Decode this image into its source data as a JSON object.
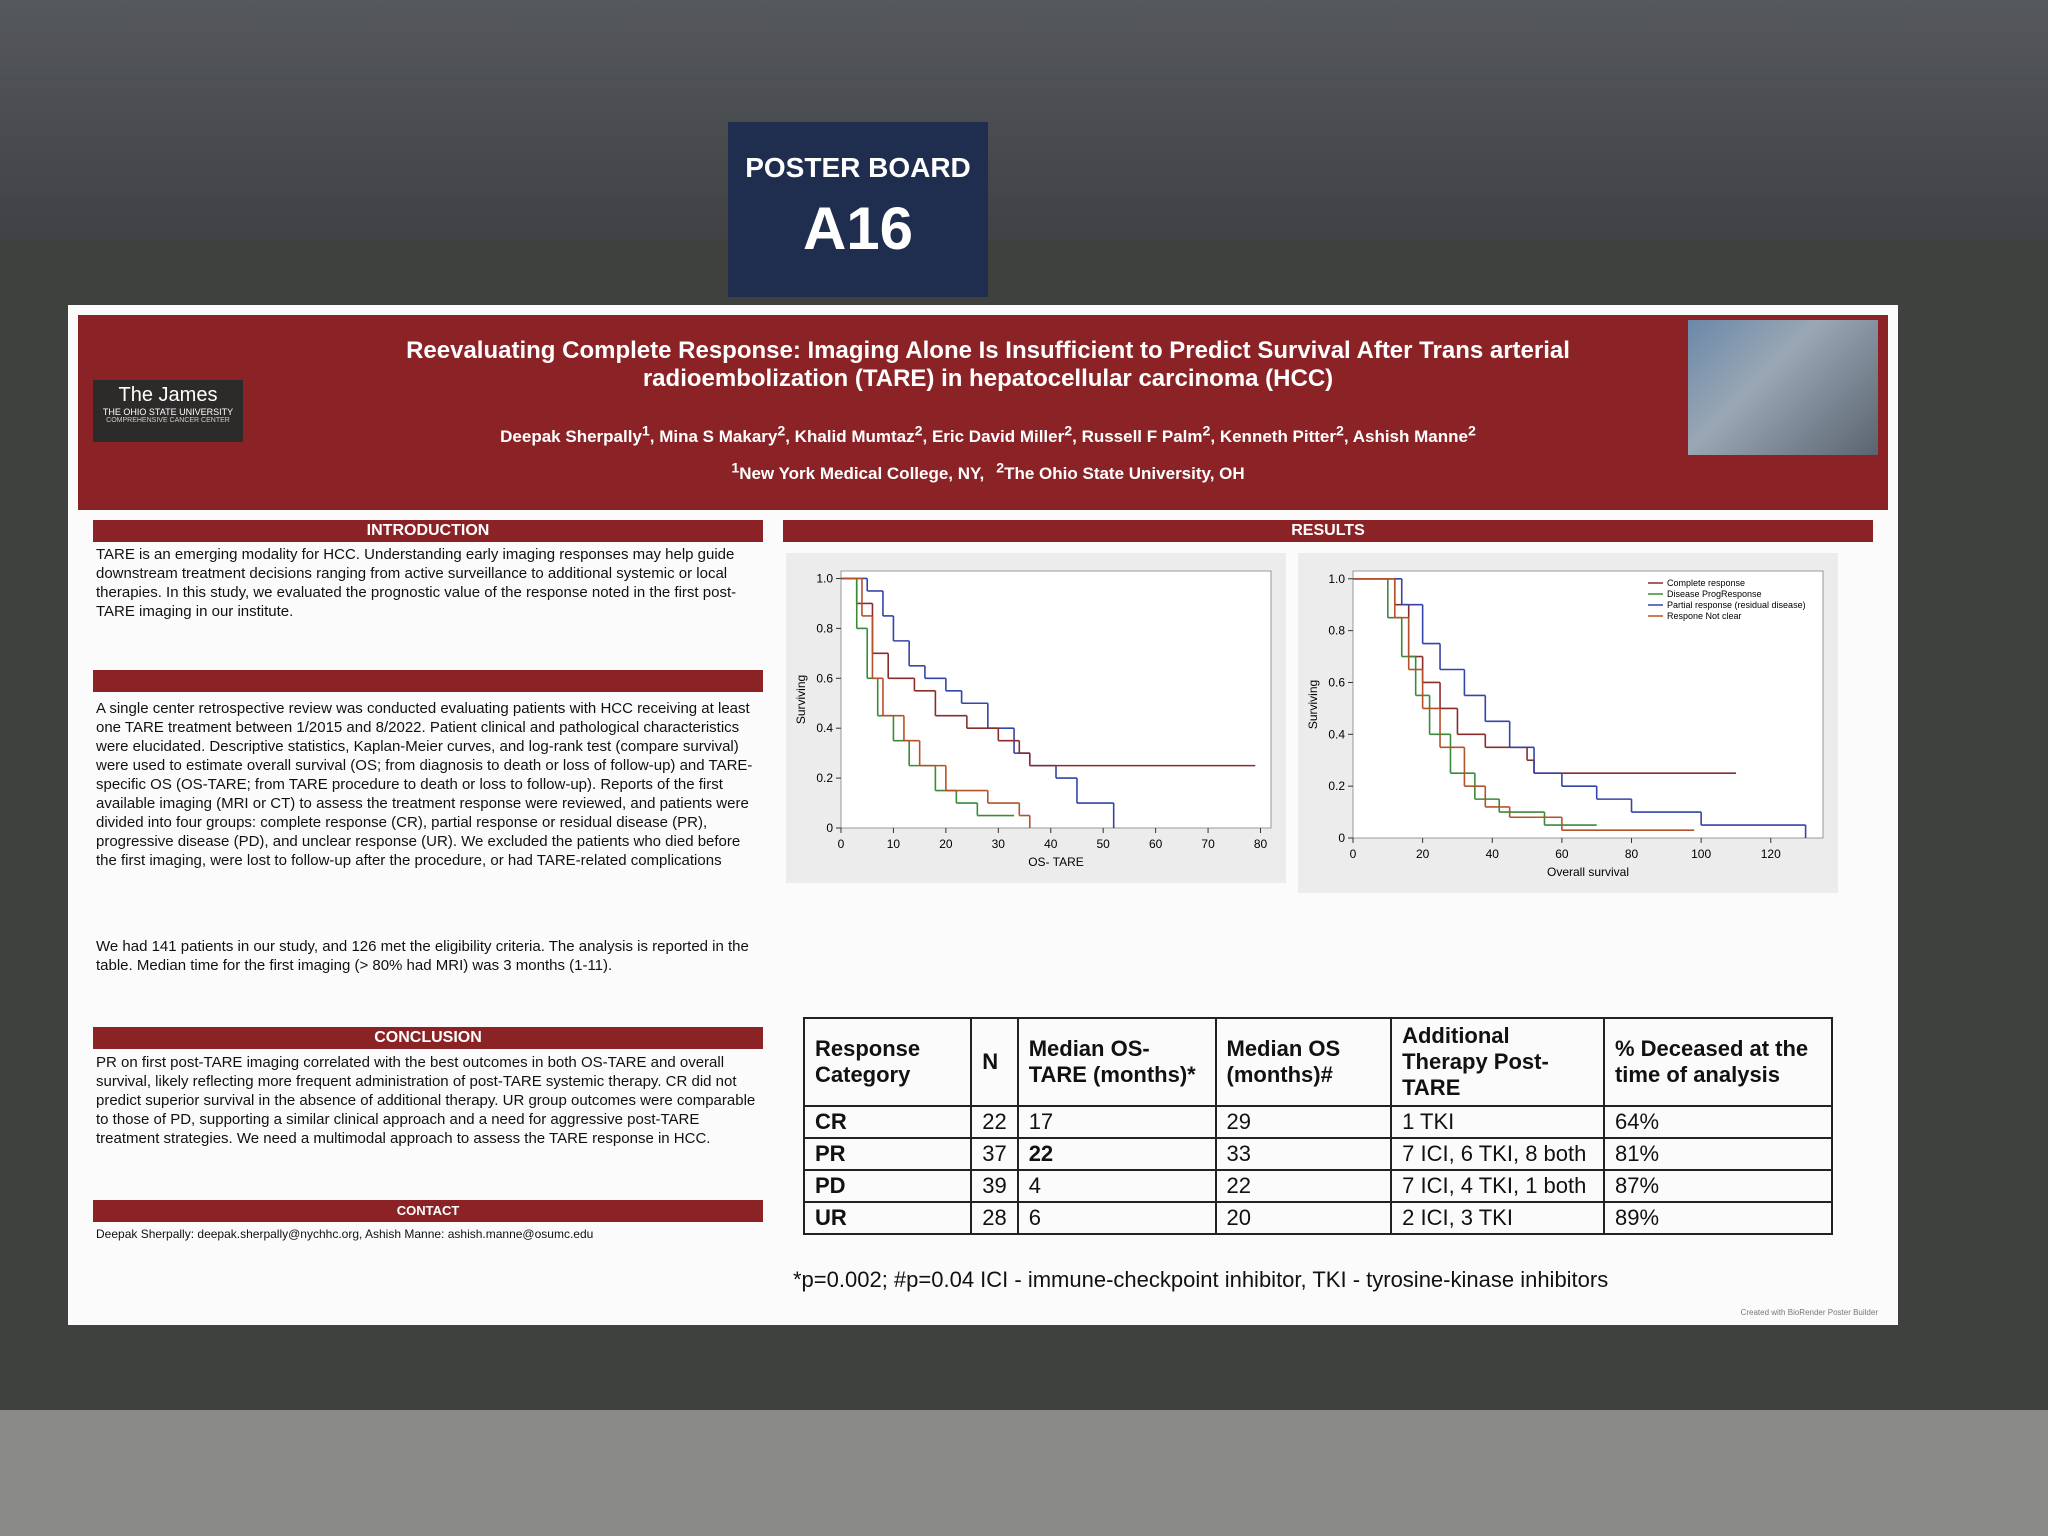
{
  "board": {
    "label": "POSTER BOARD",
    "number": "A16"
  },
  "poster": {
    "title": "Reevaluating Complete Response: Imaging Alone Is Insufficient to Predict Survival After Trans arterial radioembolization (TARE) in hepatocellular carcinoma (HCC)",
    "logo": {
      "name": "The James",
      "university": "The Ohio State University",
      "center": "Comprehensive Cancer Center"
    },
    "authors": [
      {
        "name": "Deepak Sherpally",
        "sup": "1"
      },
      {
        "name": "Mina S Makary",
        "sup": "2"
      },
      {
        "name": "Khalid Mumtaz",
        "sup": "2"
      },
      {
        "name": "Eric David Miller",
        "sup": "2"
      },
      {
        "name": "Russell F Palm",
        "sup": "2"
      },
      {
        "name": "Kenneth Pitter",
        "sup": "2"
      },
      {
        "name": "Ashish Manne",
        "sup": "2"
      }
    ],
    "affiliations": [
      {
        "sup": "1",
        "text": "New York Medical College, NY,"
      },
      {
        "sup": "2",
        "text": "The Ohio State University, OH"
      }
    ],
    "introduction": {
      "heading": "INTRODUCTION",
      "text": "TARE is an emerging modality for HCC. Understanding early imaging responses may help guide downstream treatment decisions ranging from active surveillance to additional systemic or local therapies. In this study, we evaluated the prognostic value of the response noted in the first post-TARE imaging in our institute."
    },
    "methods": {
      "paragraphs": [
        "A single center retrospective review was conducted evaluating patients with HCC receiving at least one TARE treatment between 1/2015 and 8/2022. Patient clinical and pathological characteristics were elucidated. Descriptive statistics, Kaplan-Meier curves, and log-rank test (compare survival) were used to estimate overall survival (OS; from diagnosis to death or loss of follow-up) and TARE-specific OS (OS-TARE; from TARE procedure to death or loss to follow-up). Reports of the first available imaging (MRI or CT) to assess the treatment response were reviewed, and patients were divided into four groups: complete response (CR), partial response or residual disease (PR), progressive disease (PD), and unclear response (UR). We excluded the patients who died before the first imaging, were lost to follow-up after the procedure, or had TARE-related complications",
        "We had 141 patients in our study, and 126 met the eligibility criteria. The analysis is reported in the table. Median time for the first imaging (> 80% had MRI) was 3 months (1-11)."
      ]
    },
    "conclusion": {
      "heading": "CONCLUSION",
      "text": "PR on first post-TARE imaging correlated with the best outcomes in both OS-TARE and overall survival, likely reflecting more frequent administration of post-TARE systemic therapy. CR did not predict superior survival in the absence of additional therapy. UR group outcomes were comparable to those of PD, supporting a similar clinical approach and a need for aggressive post-TARE treatment strategies. We need a multimodal approach to assess the TARE response in HCC."
    },
    "contact": {
      "heading": "CONTACT",
      "text": "Deepak Sherpally: deepak.sherpally@nychhc.org,  Ashish Manne: ashish.manne@osumc.edu"
    },
    "results": {
      "heading": "RESULTS"
    },
    "table": {
      "header": [
        "Response Category",
        "N",
        "Median OS-TARE (months)*",
        "Median OS (months)#",
        "Additional Therapy Post-TARE",
        "% Deceased at the time of analysis"
      ],
      "rows": [
        [
          "CR",
          "22",
          "17",
          "29",
          "1 TKI",
          "64%"
        ],
        [
          "PR",
          "37",
          "22",
          "33",
          "7 ICI, 6 TKI, 8 both",
          "81%"
        ],
        [
          "PD",
          "39",
          "4",
          "22",
          "7 ICI, 4 TKI, 1 both",
          "87%"
        ],
        [
          "UR",
          "28",
          "6",
          "20",
          "2 ICI, 3 TKI",
          "89%"
        ]
      ]
    },
    "footnote": "*p=0.002; #p=0.04 ICI - immune-checkpoint inhibitor, TKI - tyrosine-kinase inhibitors",
    "credit": "Created with BioRender Poster Builder"
  },
  "chart_data": [
    {
      "type": "line",
      "step": true,
      "xlabel": "OS- TARE",
      "ylabel": "Surviving",
      "xlim": [
        0,
        82
      ],
      "ylim": [
        0,
        1.03
      ],
      "xticks": [
        0,
        10,
        20,
        30,
        40,
        50,
        60,
        70,
        80
      ],
      "yticks": [
        0,
        0.2,
        0.4,
        0.6,
        0.8,
        {
          "value": 1,
          "label": "1.0"
        }
      ],
      "series": [
        {
          "color": "#3344aa",
          "x": [
            0,
            5,
            8,
            10,
            13,
            16,
            20,
            23,
            28,
            33,
            36,
            41,
            45,
            52,
            52
          ],
          "values": [
            1,
            0.95,
            0.85,
            0.75,
            0.65,
            0.6,
            0.55,
            0.5,
            0.4,
            0.3,
            0.25,
            0.2,
            0.1,
            0.05,
            0
          ]
        },
        {
          "color": "#8b2c2c",
          "x": [
            0,
            3,
            6,
            9,
            14,
            18,
            24,
            30,
            34,
            36,
            79
          ],
          "values": [
            1,
            0.9,
            0.7,
            0.6,
            0.55,
            0.45,
            0.4,
            0.35,
            0.3,
            0.25,
            0.25
          ]
        },
        {
          "color": "#3a8a3a",
          "x": [
            0,
            3,
            5,
            7,
            10,
            13,
            18,
            22,
            26,
            33
          ],
          "values": [
            1,
            0.8,
            0.6,
            0.45,
            0.35,
            0.25,
            0.15,
            0.1,
            0.05,
            0.05
          ]
        },
        {
          "color": "#b5522a",
          "x": [
            0,
            4,
            6,
            8,
            12,
            15,
            20,
            28,
            34,
            36
          ],
          "values": [
            1,
            0.85,
            0.6,
            0.45,
            0.35,
            0.25,
            0.15,
            0.1,
            0.05,
            0
          ]
        }
      ]
    },
    {
      "type": "line",
      "step": true,
      "xlabel": "Overall survival",
      "ylabel": "Surviving",
      "xlim": [
        0,
        135
      ],
      "ylim": [
        0,
        1.03
      ],
      "xticks": [
        0,
        20,
        40,
        60,
        80,
        100,
        120
      ],
      "yticks": [
        0,
        0.2,
        0.4,
        0.6,
        0.8,
        {
          "value": 1,
          "label": "1.0"
        }
      ],
      "series": [
        {
          "name": "Complete response",
          "color": "#8b2c2c",
          "x": [
            0,
            12,
            16,
            20,
            25,
            30,
            38,
            50,
            52,
            110
          ],
          "values": [
            1,
            0.9,
            0.7,
            0.6,
            0.5,
            0.4,
            0.35,
            0.3,
            0.25,
            0.25
          ]
        },
        {
          "name": "Disease ProgResponse",
          "color": "#3a8a3a",
          "x": [
            0,
            10,
            14,
            18,
            22,
            28,
            35,
            42,
            55,
            70
          ],
          "values": [
            1,
            0.85,
            0.7,
            0.55,
            0.4,
            0.25,
            0.15,
            0.1,
            0.05,
            0.05
          ]
        },
        {
          "name": "Partial response (residual disease)",
          "color": "#3344aa",
          "x": [
            0,
            14,
            20,
            25,
            32,
            38,
            45,
            52,
            60,
            70,
            80,
            100,
            130,
            130
          ],
          "values": [
            1,
            0.9,
            0.75,
            0.65,
            0.55,
            0.45,
            0.35,
            0.25,
            0.2,
            0.15,
            0.1,
            0.05,
            0.05,
            0
          ]
        },
        {
          "name": "Respone Not clear",
          "color": "#b5522a",
          "x": [
            0,
            12,
            16,
            20,
            25,
            32,
            38,
            45,
            60,
            98
          ],
          "values": [
            1,
            0.85,
            0.65,
            0.5,
            0.35,
            0.2,
            0.12,
            0.08,
            0.03,
            0.03
          ]
        }
      ]
    }
  ]
}
